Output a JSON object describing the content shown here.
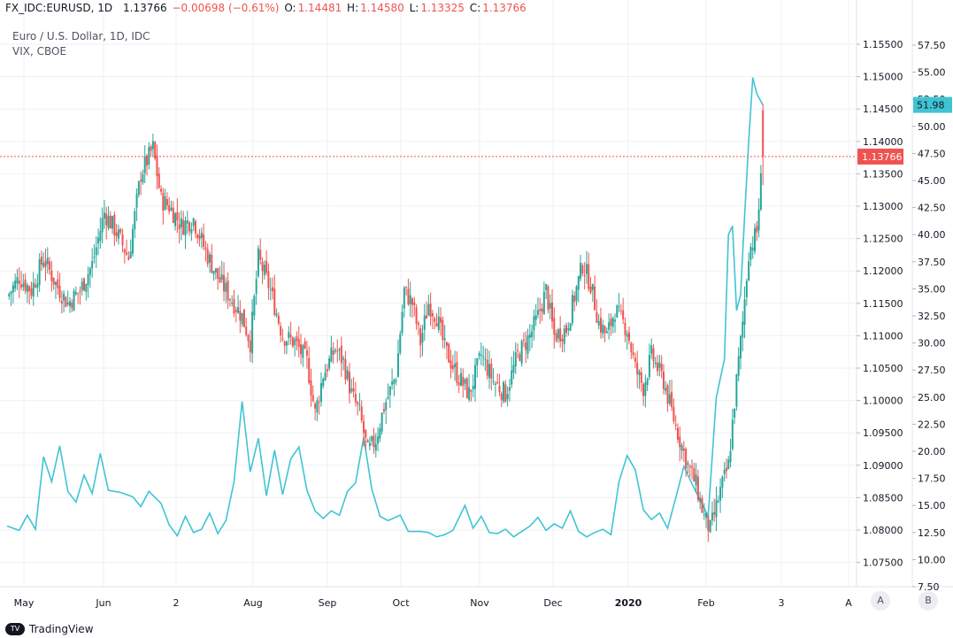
{
  "header": {
    "symbol": "FX_IDC:EURUSD, 1D",
    "last": "1.13766",
    "change": "−0.00698 (−0.61%)",
    "o_label": "O:",
    "o": "1.14481",
    "h_label": "H:",
    "h": "1.14580",
    "l_label": "L:",
    "l": "1.13325",
    "c_label": "C:",
    "c": "1.13766"
  },
  "legend": {
    "main": "Euro / U.S. Dollar, 1D, IDC",
    "overlay": "VIX, CBOE"
  },
  "scale_buttons": {
    "a": "A",
    "b": "B"
  },
  "branding": {
    "name": "TradingView"
  },
  "colors": {
    "up": "#26a69a",
    "down": "#ef5350",
    "vix": "#40c4d4",
    "grid": "#eef0f3",
    "text": "#131722"
  },
  "chart_data": [
    {
      "type": "candlestick",
      "symbol": "EURUSD",
      "title": "Euro / U.S. Dollar, 1D, IDC",
      "x_tick_labels": [
        "May",
        "Jun",
        "2",
        "Aug",
        "Sep",
        "Oct",
        "Nov",
        "Dec",
        "2020",
        "Feb",
        "3",
        "A"
      ],
      "y_axis": "right",
      "ylim": [
        1.0725,
        1.1575
      ],
      "y_ticks": [
        "1.15500",
        "1.15000",
        "1.14500",
        "1.14000",
        "1.13500",
        "1.13000",
        "1.12500",
        "1.12000",
        "1.11500",
        "1.11000",
        "1.10500",
        "1.10000",
        "1.09500",
        "1.09000",
        "1.08500",
        "1.08000",
        "1.07500"
      ],
      "last_price_label": "1.13766",
      "close_path": [
        [
          0,
          1.116
        ],
        [
          6,
          1.119
        ],
        [
          12,
          1.117
        ],
        [
          18,
          1.122
        ],
        [
          24,
          1.118
        ],
        [
          30,
          1.115
        ],
        [
          36,
          1.117
        ],
        [
          42,
          1.121
        ],
        [
          48,
          1.129
        ],
        [
          54,
          1.126
        ],
        [
          60,
          1.122
        ],
        [
          66,
          1.135
        ],
        [
          72,
          1.139
        ],
        [
          76,
          1.131
        ],
        [
          80,
          1.13
        ],
        [
          86,
          1.127
        ],
        [
          92,
          1.128
        ],
        [
          98,
          1.123
        ],
        [
          104,
          1.119
        ],
        [
          110,
          1.116
        ],
        [
          116,
          1.113
        ],
        [
          120,
          1.109
        ],
        [
          124,
          1.122
        ],
        [
          130,
          1.117
        ],
        [
          136,
          1.11
        ],
        [
          142,
          1.109
        ],
        [
          148,
          1.106
        ],
        [
          152,
          1.098
        ],
        [
          156,
          1.104
        ],
        [
          162,
          1.108
        ],
        [
          166,
          1.106
        ],
        [
          170,
          1.101
        ],
        [
          174,
          1.098
        ],
        [
          178,
          1.092
        ],
        [
          182,
          1.094
        ],
        [
          186,
          1.099
        ],
        [
          192,
          1.104
        ],
        [
          196,
          1.117
        ],
        [
          200,
          1.115
        ],
        [
          204,
          1.109
        ],
        [
          208,
          1.115
        ],
        [
          212,
          1.113
        ],
        [
          216,
          1.108
        ],
        [
          222,
          1.104
        ],
        [
          228,
          1.101
        ],
        [
          234,
          1.107
        ],
        [
          240,
          1.103
        ],
        [
          246,
          1.101
        ],
        [
          252,
          1.107
        ],
        [
          258,
          1.11
        ],
        [
          262,
          1.113
        ],
        [
          266,
          1.117
        ],
        [
          270,
          1.11
        ],
        [
          276,
          1.111
        ],
        [
          280,
          1.116
        ],
        [
          284,
          1.121
        ],
        [
          288,
          1.118
        ],
        [
          292,
          1.112
        ],
        [
          296,
          1.11
        ],
        [
          300,
          1.114
        ],
        [
          306,
          1.111
        ],
        [
          310,
          1.105
        ],
        [
          314,
          1.102
        ],
        [
          318,
          1.107
        ],
        [
          324,
          1.103
        ],
        [
          330,
          1.096
        ],
        [
          336,
          1.09
        ],
        [
          340,
          1.087
        ],
        [
          344,
          1.082
        ],
        [
          347,
          1.08
        ],
        [
          352,
          1.086
        ],
        [
          356,
          1.09
        ],
        [
          360,
          1.103
        ],
        [
          363,
          1.112
        ],
        [
          366,
          1.123
        ],
        [
          370,
          1.126
        ],
        [
          373,
          1.1378
        ]
      ]
    },
    {
      "type": "line",
      "symbol": "VIX",
      "title": "VIX, CBOE",
      "y_axis": "right",
      "ylim": [
        6.875,
        59.375
      ],
      "y_ticks": [
        "57.50",
        "55.00",
        "52.50",
        "50.00",
        "47.50",
        "45.00",
        "42.50",
        "40.00",
        "37.50",
        "35.00",
        "32.50",
        "30.00",
        "27.50",
        "25.00",
        "22.50",
        "20.00",
        "17.50",
        "15.00",
        "12.50",
        "10.00",
        "7.50"
      ],
      "last_value_label": "51.98",
      "path": [
        [
          0,
          13.1
        ],
        [
          6,
          12.7
        ],
        [
          10,
          14.1
        ],
        [
          14,
          12.8
        ],
        [
          18,
          19.5
        ],
        [
          22,
          17.2
        ],
        [
          26,
          20.5
        ],
        [
          30,
          16.3
        ],
        [
          34,
          15.3
        ],
        [
          38,
          17.8
        ],
        [
          42,
          16.1
        ],
        [
          46,
          19.8
        ],
        [
          50,
          16.4
        ],
        [
          56,
          16.2
        ],
        [
          62,
          15.8
        ],
        [
          66,
          14.9
        ],
        [
          70,
          16.3
        ],
        [
          76,
          15.2
        ],
        [
          80,
          13.2
        ],
        [
          84,
          12.2
        ],
        [
          88,
          14.0
        ],
        [
          92,
          12.5
        ],
        [
          96,
          12.8
        ],
        [
          100,
          14.3
        ],
        [
          104,
          12.4
        ],
        [
          108,
          13.6
        ],
        [
          112,
          17.2
        ],
        [
          116,
          24.6
        ],
        [
          120,
          18.1
        ],
        [
          124,
          21.2
        ],
        [
          128,
          15.9
        ],
        [
          132,
          20.1
        ],
        [
          136,
          16.0
        ],
        [
          140,
          19.3
        ],
        [
          144,
          20.4
        ],
        [
          148,
          16.4
        ],
        [
          152,
          14.5
        ],
        [
          156,
          13.8
        ],
        [
          160,
          14.5
        ],
        [
          164,
          14.1
        ],
        [
          168,
          16.3
        ],
        [
          172,
          17.1
        ],
        [
          176,
          21.3
        ],
        [
          180,
          16.5
        ],
        [
          184,
          14.0
        ],
        [
          188,
          13.6
        ],
        [
          194,
          14.1
        ],
        [
          198,
          12.6
        ],
        [
          204,
          12.6
        ],
        [
          208,
          12.5
        ],
        [
          212,
          12.1
        ],
        [
          216,
          12.3
        ],
        [
          220,
          12.7
        ],
        [
          226,
          15.0
        ],
        [
          230,
          12.9
        ],
        [
          234,
          14.0
        ],
        [
          238,
          12.5
        ],
        [
          242,
          12.4
        ],
        [
          246,
          12.8
        ],
        [
          250,
          12.1
        ],
        [
          254,
          12.6
        ],
        [
          258,
          13.1
        ],
        [
          262,
          13.9
        ],
        [
          266,
          12.7
        ],
        [
          270,
          13.3
        ],
        [
          274,
          12.9
        ],
        [
          278,
          14.5
        ],
        [
          282,
          12.6
        ],
        [
          286,
          12.1
        ],
        [
          290,
          12.5
        ],
        [
          294,
          12.8
        ],
        [
          298,
          12.3
        ],
        [
          302,
          17.2
        ],
        [
          306,
          19.6
        ],
        [
          310,
          18.3
        ],
        [
          314,
          14.6
        ],
        [
          318,
          13.7
        ],
        [
          322,
          14.3
        ],
        [
          326,
          12.9
        ],
        [
          330,
          15.7
        ],
        [
          334,
          18.6
        ],
        [
          338,
          17.0
        ],
        [
          342,
          15.5
        ],
        [
          346,
          14.0
        ],
        [
          350,
          25.0
        ],
        [
          354,
          28.5
        ],
        [
          356,
          40.0
        ],
        [
          358,
          40.8
        ],
        [
          360,
          33.0
        ],
        [
          362,
          34.5
        ],
        [
          364,
          41.9
        ],
        [
          366,
          48.6
        ],
        [
          368,
          54.5
        ],
        [
          370,
          53.0
        ],
        [
          373,
          51.98
        ]
      ]
    }
  ]
}
